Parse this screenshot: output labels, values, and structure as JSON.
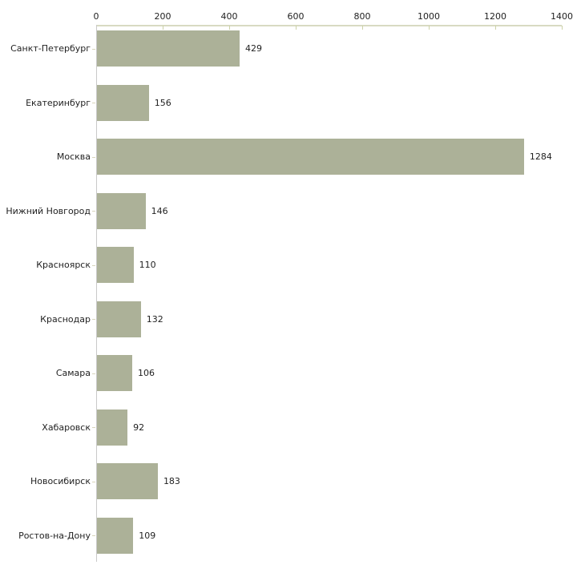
{
  "chart_data": {
    "type": "bar",
    "orientation": "horizontal",
    "title": "",
    "xlabel": "",
    "ylabel": "",
    "categories": [
      "Санкт-Петербург",
      "Екатеринбург",
      "Москва",
      "Нижний Новгород",
      "Красноярск",
      "Краснодар",
      "Самара",
      "Хабаровск",
      "Новосибирск",
      "Ростов-на-Дону"
    ],
    "values": [
      429,
      156,
      1284,
      146,
      110,
      132,
      106,
      92,
      183,
      109
    ],
    "value_labels": [
      "429",
      "156",
      "1284",
      "146",
      "110",
      "132",
      "106",
      "92",
      "183",
      "109"
    ],
    "xlim": [
      0,
      1400
    ],
    "x_ticks": [
      0,
      200,
      400,
      600,
      800,
      1000,
      1200,
      1400
    ],
    "x_tick_labels": [
      "0",
      "200",
      "400",
      "600",
      "800",
      "1000",
      "1200",
      "1400"
    ],
    "axis_position": "top",
    "grid": "off",
    "legend": "none",
    "colors": {
      "bar": "#acb198",
      "axis_line": "#d8dac2",
      "tick_mark": "#ccd2a8",
      "category_axis_line": "#c9c9c9",
      "category_tick": "#d8d5bd",
      "text": "#1f1f1f",
      "background": "#ffffff"
    }
  }
}
